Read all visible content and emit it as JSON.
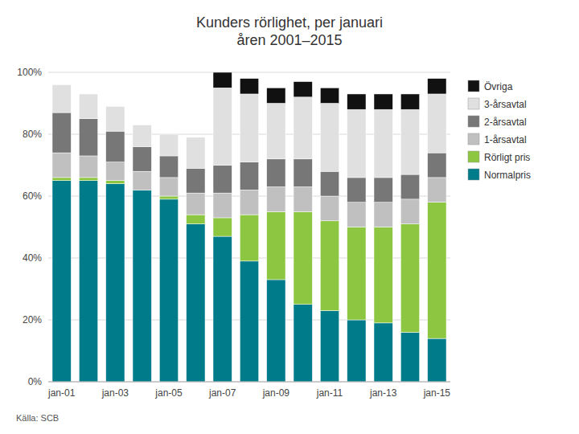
{
  "chart_data": {
    "type": "bar",
    "stacked": true,
    "title": "Kunders rörlighet, per januari\nåren 2001–2015",
    "annotations": [
      "Källa: SCB"
    ],
    "categories": [
      "jan-01",
      null,
      "jan-03",
      null,
      "jan-05",
      null,
      "jan-07",
      null,
      "jan-09",
      null,
      "jan-11",
      null,
      "jan-13",
      null,
      "jan-15"
    ],
    "series": [
      {
        "name": "Normalpris",
        "color": "#007B8A",
        "values": [
          65,
          65,
          64,
          62,
          59,
          51,
          47,
          39,
          33,
          25,
          23,
          20,
          19,
          16,
          14
        ]
      },
      {
        "name": "Rörligt pris",
        "color": "#8DC641",
        "values": [
          1,
          1,
          1,
          0,
          1,
          3,
          6,
          15,
          22,
          30,
          29,
          30,
          31,
          35,
          44
        ]
      },
      {
        "name": "1-årsavtal",
        "color": "#C0C0C0",
        "values": [
          8,
          7,
          6,
          6,
          6,
          7,
          8,
          8,
          8,
          8,
          8,
          8,
          8,
          8,
          8
        ]
      },
      {
        "name": "2-årsavtal",
        "color": "#777777",
        "values": [
          13,
          12,
          10,
          8,
          7,
          8,
          9,
          9,
          9,
          9,
          8,
          8,
          8,
          8,
          8
        ]
      },
      {
        "name": "3-årsavtal",
        "color": "#E0E0E0",
        "values": [
          9,
          8,
          8,
          7,
          7,
          10,
          25,
          22,
          18,
          20,
          22,
          22,
          22,
          21,
          19
        ]
      },
      {
        "name": "Övriga",
        "color": "#111111",
        "values": [
          0,
          0,
          0,
          0,
          0,
          0,
          5,
          5,
          5,
          5,
          5,
          5,
          5,
          5,
          5
        ]
      }
    ],
    "ylim": [
      0,
      100
    ],
    "yticks": [
      {
        "value": 0,
        "label": "0%"
      },
      {
        "value": 20,
        "label": "20%"
      },
      {
        "value": 40,
        "label": "40%"
      },
      {
        "value": 60,
        "label": "60%"
      },
      {
        "value": 80,
        "label": "80%"
      },
      {
        "value": 100,
        "label": "100%"
      }
    ],
    "grid": true,
    "legend": "right"
  }
}
